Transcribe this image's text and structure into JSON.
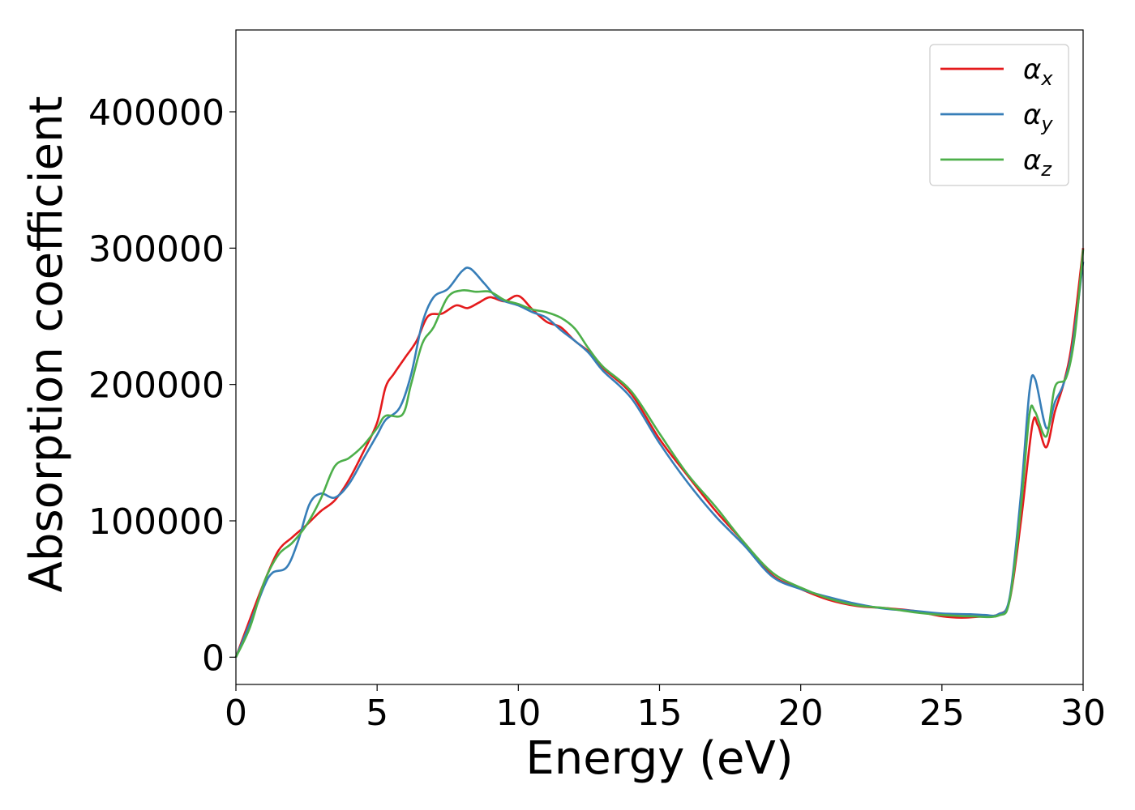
{
  "chart_data": {
    "type": "line",
    "title": "",
    "xlabel": "Energy (eV)",
    "ylabel": "Absorption coefficient",
    "xlim": [
      0,
      30
    ],
    "ylim": [
      -20000,
      460000
    ],
    "xticks": [
      0,
      5,
      10,
      15,
      20,
      25,
      30
    ],
    "xtick_labels": [
      "0",
      "5",
      "10",
      "15",
      "20",
      "25",
      "30"
    ],
    "yticks": [
      0,
      100000,
      200000,
      300000,
      400000
    ],
    "ytick_labels": [
      "0",
      "100000",
      "200000",
      "300000",
      "400000"
    ],
    "grid": false,
    "legend_position": "top-right",
    "series": [
      {
        "name": "αx",
        "name_base": "α",
        "name_sub": "x",
        "color": "#e41a1c",
        "points": [
          [
            0,
            0
          ],
          [
            0.5,
            28000
          ],
          [
            1,
            55000
          ],
          [
            1.5,
            78000
          ],
          [
            2,
            88000
          ],
          [
            2.5,
            97000
          ],
          [
            3,
            107000
          ],
          [
            3.5,
            115000
          ],
          [
            4,
            130000
          ],
          [
            4.5,
            150000
          ],
          [
            5,
            172000
          ],
          [
            5.3,
            198000
          ],
          [
            5.6,
            208000
          ],
          [
            6,
            220000
          ],
          [
            6.4,
            232000
          ],
          [
            6.8,
            250000
          ],
          [
            7.3,
            252000
          ],
          [
            7.8,
            258000
          ],
          [
            8.2,
            256000
          ],
          [
            8.6,
            260000
          ],
          [
            9,
            264000
          ],
          [
            9.5,
            261000
          ],
          [
            10,
            265000
          ],
          [
            10.5,
            255000
          ],
          [
            11,
            246000
          ],
          [
            11.5,
            242000
          ],
          [
            12,
            232000
          ],
          [
            12.5,
            224000
          ],
          [
            13,
            212000
          ],
          [
            14,
            193000
          ],
          [
            15,
            160000
          ],
          [
            16,
            133000
          ],
          [
            17,
            107000
          ],
          [
            18,
            84000
          ],
          [
            19,
            60000
          ],
          [
            20,
            50000
          ],
          [
            21,
            42000
          ],
          [
            22,
            37500
          ],
          [
            23,
            36000
          ],
          [
            24,
            34000
          ],
          [
            25,
            30000
          ],
          [
            25.7,
            29000
          ],
          [
            26.5,
            30000
          ],
          [
            27,
            31500
          ],
          [
            27.4,
            42000
          ],
          [
            27.8,
            100000
          ],
          [
            28.2,
            170000
          ],
          [
            28.4,
            170000
          ],
          [
            28.7,
            154000
          ],
          [
            29,
            180000
          ],
          [
            29.3,
            200000
          ],
          [
            29.6,
            230000
          ],
          [
            30,
            300000
          ]
        ]
      },
      {
        "name": "αy",
        "name_base": "α",
        "name_sub": "y",
        "color": "#377eb8",
        "points": [
          [
            0,
            0
          ],
          [
            0.5,
            25000
          ],
          [
            1,
            52000
          ],
          [
            1.3,
            62000
          ],
          [
            1.8,
            66000
          ],
          [
            2.2,
            85000
          ],
          [
            2.6,
            112000
          ],
          [
            3,
            120000
          ],
          [
            3.5,
            117000
          ],
          [
            4,
            127000
          ],
          [
            4.5,
            145000
          ],
          [
            5,
            163000
          ],
          [
            5.3,
            174000
          ],
          [
            5.8,
            183000
          ],
          [
            6.2,
            207000
          ],
          [
            6.6,
            245000
          ],
          [
            7,
            264000
          ],
          [
            7.5,
            270000
          ],
          [
            8,
            283000
          ],
          [
            8.3,
            285000
          ],
          [
            8.8,
            274000
          ],
          [
            9.3,
            263000
          ],
          [
            10,
            258000
          ],
          [
            10.5,
            253000
          ],
          [
            11,
            249000
          ],
          [
            11.5,
            240000
          ],
          [
            12,
            232000
          ],
          [
            12.5,
            223000
          ],
          [
            13,
            210000
          ],
          [
            14,
            190000
          ],
          [
            15,
            157000
          ],
          [
            16,
            128000
          ],
          [
            17,
            103000
          ],
          [
            18,
            82000
          ],
          [
            19,
            59000
          ],
          [
            20,
            50000
          ],
          [
            21,
            44000
          ],
          [
            22,
            39000
          ],
          [
            23,
            35500
          ],
          [
            24,
            34000
          ],
          [
            25,
            32000
          ],
          [
            26,
            31500
          ],
          [
            26.5,
            31000
          ],
          [
            27,
            31500
          ],
          [
            27.4,
            44000
          ],
          [
            27.8,
            120000
          ],
          [
            28.1,
            195000
          ],
          [
            28.3,
            204000
          ],
          [
            28.7,
            168000
          ],
          [
            29,
            187000
          ],
          [
            29.3,
            200000
          ],
          [
            29.6,
            225000
          ],
          [
            30,
            290000
          ]
        ]
      },
      {
        "name": "αz",
        "name_base": "α",
        "name_sub": "z",
        "color": "#4daf4a",
        "points": [
          [
            0,
            0
          ],
          [
            0.5,
            22000
          ],
          [
            1,
            55000
          ],
          [
            1.5,
            75000
          ],
          [
            2,
            84000
          ],
          [
            2.5,
            97000
          ],
          [
            3,
            116000
          ],
          [
            3.5,
            140000
          ],
          [
            4,
            146000
          ],
          [
            4.5,
            155000
          ],
          [
            5,
            168000
          ],
          [
            5.3,
            177000
          ],
          [
            5.9,
            178000
          ],
          [
            6.2,
            200000
          ],
          [
            6.6,
            230000
          ],
          [
            7,
            242000
          ],
          [
            7.5,
            264000
          ],
          [
            8,
            269000
          ],
          [
            8.5,
            268000
          ],
          [
            9,
            268000
          ],
          [
            9.5,
            262000
          ],
          [
            10,
            259000
          ],
          [
            10.5,
            255000
          ],
          [
            11,
            253000
          ],
          [
            11.5,
            249000
          ],
          [
            12,
            241000
          ],
          [
            12.5,
            226000
          ],
          [
            13,
            213000
          ],
          [
            14,
            195000
          ],
          [
            15,
            164000
          ],
          [
            16,
            134000
          ],
          [
            17,
            110000
          ],
          [
            18,
            84000
          ],
          [
            19,
            62000
          ],
          [
            20,
            51000
          ],
          [
            21,
            43000
          ],
          [
            22,
            38000
          ],
          [
            23,
            36000
          ],
          [
            24,
            33000
          ],
          [
            25,
            31000
          ],
          [
            26,
            30000
          ],
          [
            27,
            30500
          ],
          [
            27.4,
            42000
          ],
          [
            27.8,
            110000
          ],
          [
            28.1,
            178000
          ],
          [
            28.3,
            180000
          ],
          [
            28.7,
            162000
          ],
          [
            29,
            198000
          ],
          [
            29.4,
            205000
          ],
          [
            29.7,
            235000
          ],
          [
            30,
            299000
          ]
        ]
      }
    ]
  }
}
